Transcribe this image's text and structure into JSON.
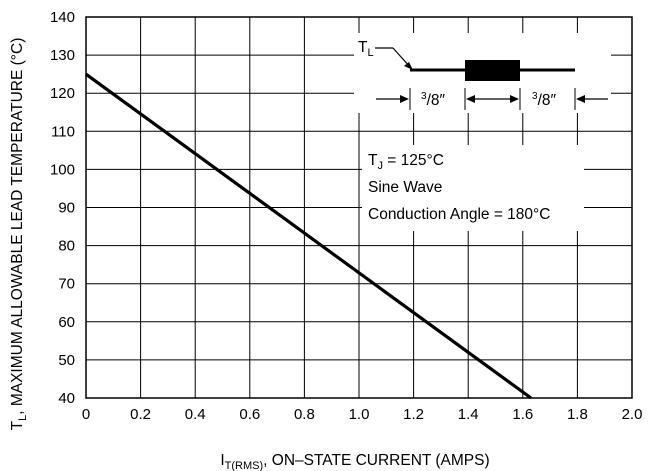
{
  "chart_data": {
    "type": "line",
    "title": "",
    "xlabel": {
      "main": "I",
      "sub": "T(RMS)",
      "rest": ", ON–STATE CURRENT (AMPS)"
    },
    "ylabel": {
      "main": "T",
      "sub": "L",
      "rest": ", MAXIMUM ALLOWABLE LEAD TEMPERATURE (°C)"
    },
    "xlim": [
      0,
      2.0
    ],
    "ylim": [
      40,
      140
    ],
    "x_ticks": [
      "0",
      "0.2",
      "0.4",
      "0.6",
      "0.8",
      "1.0",
      "1.2",
      "1.4",
      "1.6",
      "1.8",
      "2.0"
    ],
    "x_tick_values": [
      0,
      0.2,
      0.4,
      0.6,
      0.8,
      1.0,
      1.2,
      1.4,
      1.6,
      1.8,
      2.0
    ],
    "y_ticks": [
      "40",
      "50",
      "60",
      "70",
      "80",
      "90",
      "100",
      "110",
      "120",
      "130",
      "140"
    ],
    "y_tick_values": [
      40,
      50,
      60,
      70,
      80,
      90,
      100,
      110,
      120,
      130,
      140
    ],
    "grid": true,
    "series": [
      {
        "x": [
          0,
          1.63
        ],
        "y": [
          125,
          40
        ]
      }
    ],
    "annotations": {
      "lead_label": {
        "main": "T",
        "sub": "L"
      },
      "dimension_left": {
        "sup": "3",
        "rest": "/8″"
      },
      "dimension_right": {
        "sup": "3",
        "rest": "/8″"
      },
      "conditions": [
        {
          "main": "T",
          "sub": "J",
          "rest": " = 125°C"
        },
        {
          "main": "Sine Wave"
        },
        {
          "main": "Conduction Angle = 180°C"
        }
      ]
    }
  }
}
